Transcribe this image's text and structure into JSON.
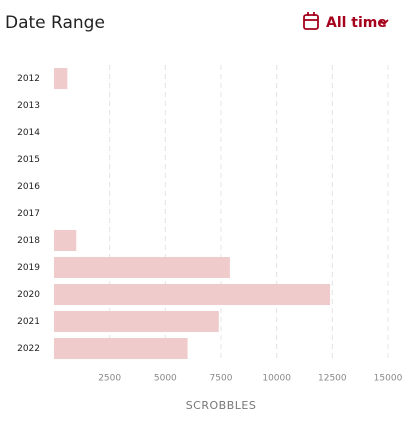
{
  "chart_data": {
    "type": "barh",
    "title": "Date Range",
    "categories": [
      "2012",
      "2013",
      "2014",
      "2015",
      "2016",
      "2017",
      "2018",
      "2019",
      "2020",
      "2021",
      "2022"
    ],
    "values": [
      600,
      0,
      0,
      0,
      0,
      0,
      1000,
      7900,
      12400,
      7400,
      6000
    ],
    "color": "#f0cbcb",
    "xlabel": "SCROBBLES",
    "xlim": [
      0,
      15000
    ],
    "xticks": [
      2500,
      5000,
      7500,
      10000,
      12500,
      15000
    ],
    "grid": true
  },
  "filter": {
    "label": "All time"
  }
}
